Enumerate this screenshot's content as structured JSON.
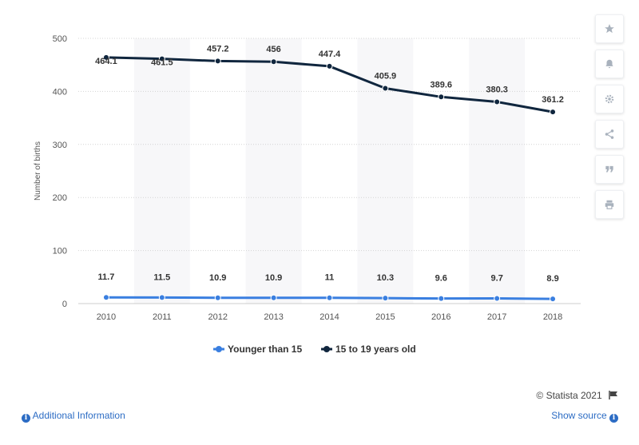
{
  "chart_data": {
    "type": "line",
    "x": [
      "2010",
      "2011",
      "2012",
      "2013",
      "2014",
      "2015",
      "2016",
      "2017",
      "2018"
    ],
    "series": [
      {
        "name": "Younger than 15",
        "color": "#3a7fe0",
        "values": [
          11.7,
          11.5,
          10.9,
          10.9,
          11,
          10.3,
          9.6,
          9.7,
          8.9
        ],
        "labels": [
          "11.7",
          "11.5",
          "10.9",
          "10.9",
          "11",
          "10.3",
          "9.6",
          "9.7",
          "8.9"
        ]
      },
      {
        "name": "15 to 19 years old",
        "color": "#10263e",
        "values": [
          464.1,
          461.5,
          457.2,
          456,
          447.4,
          405.9,
          389.6,
          380.3,
          361.2
        ],
        "labels": [
          "464.1",
          "461.5",
          "457.2",
          "456",
          "447.4",
          "405.9",
          "389.6",
          "380.3",
          "361.2"
        ]
      }
    ],
    "ylabel": "Number of births",
    "xlabel": "",
    "ylim": [
      0,
      500
    ],
    "yticks": [
      "0",
      "100",
      "200",
      "300",
      "400",
      "500"
    ],
    "grid": true,
    "legend_position": "bottom"
  },
  "toolbar": {
    "items": [
      {
        "icon": "star-icon",
        "label": "Favorite"
      },
      {
        "icon": "bell-icon",
        "label": "Notifications"
      },
      {
        "icon": "gear-icon",
        "label": "Settings"
      },
      {
        "icon": "share-icon",
        "label": "Share"
      },
      {
        "icon": "quote-icon",
        "label": "Cite"
      },
      {
        "icon": "print-icon",
        "label": "Print"
      }
    ]
  },
  "footer": {
    "credit": "© Statista 2021",
    "additional_info": "Additional Information",
    "show_source": "Show source"
  }
}
